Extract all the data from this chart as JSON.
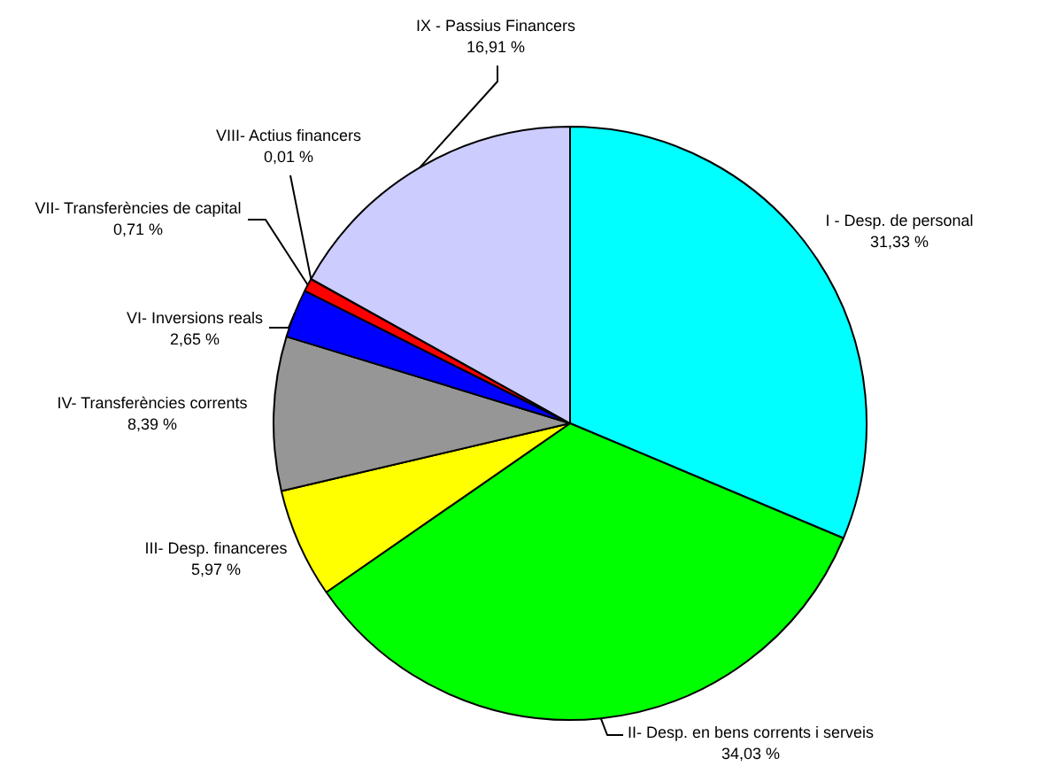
{
  "chart_data": {
    "type": "pie",
    "categories": [
      "I - Desp. de personal",
      "II- Desp. en bens corrents i serveis",
      "III- Desp. financeres",
      "IV- Transferències corrents",
      "VI- Inversions reals",
      "VII- Transferències de capital",
      "VIII- Actius financers",
      "IX - Passius Financers"
    ],
    "values": [
      31.33,
      34.03,
      5.97,
      8.39,
      2.65,
      0.71,
      0.01,
      16.91
    ],
    "colors": [
      "#00ffff",
      "#00ff00",
      "#ffff00",
      "#969696",
      "#0000ff",
      "#ff0000",
      "#800080",
      "#ccccff"
    ],
    "value_labels": [
      "31,33 %",
      "34,03 %",
      "5,97 %",
      "8,39 %",
      "2,65 %",
      "0,71 %",
      "0,01 %",
      "16,91 %"
    ],
    "legend": false
  }
}
